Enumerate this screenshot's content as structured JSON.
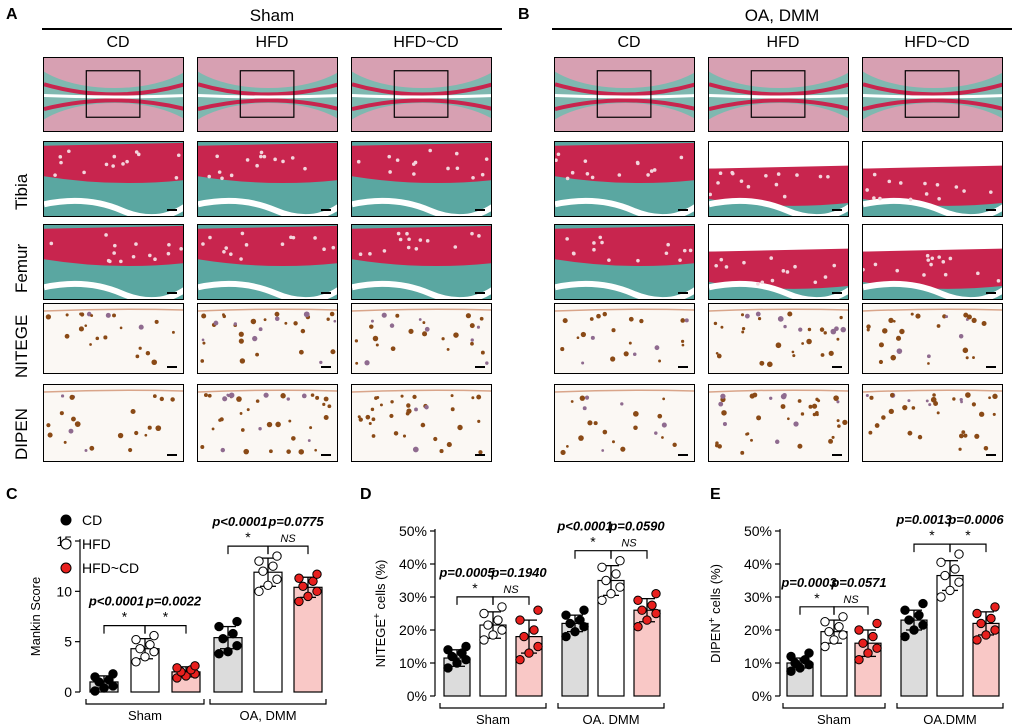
{
  "panels": {
    "A": {
      "letter": "A",
      "group": "Sham"
    },
    "B": {
      "letter": "B",
      "group": "OA, DMM"
    },
    "columns": [
      "CD",
      "HFD",
      "HFD~CD"
    ],
    "rows": [
      "Tibia",
      "Femur",
      "NITEGE",
      "DIPEN"
    ]
  },
  "colors": {
    "cd": "#000000",
    "hfd": "#ffffff",
    "hfdcd": "#e8201e",
    "barCD": "#dcdcdc",
    "barHFD": "#ffffff",
    "barHFDCD": "#f9c8c6",
    "safranin": "#c8254e",
    "fastgreen": "#5aa7a1",
    "dab": "#8a4a16"
  },
  "chart_data": [
    {
      "panel": "C",
      "type": "bar",
      "ylabel": "Mankin Score",
      "ylim": [
        0,
        15
      ],
      "yticks": [
        0,
        5,
        10,
        15
      ],
      "groups": [
        "Sham",
        "OA, DMM"
      ],
      "series": [
        {
          "name": "CD",
          "values": [
            1.0,
            5.4
          ]
        },
        {
          "name": "HFD",
          "values": [
            4.3,
            11.9
          ]
        },
        {
          "name": "HFD~CD",
          "values": [
            2.0,
            10.4
          ]
        }
      ],
      "errors": [
        [
          0.6,
          1.1
        ],
        [
          1.0,
          1.4
        ],
        [
          0.5,
          1.0
        ]
      ],
      "points": [
        [
          [
            0.1,
            0.4,
            0.6,
            1.0,
            1.2,
            1.5,
            1.8
          ],
          [
            3.8,
            4.0,
            4.6,
            5.3,
            5.8,
            6.5,
            7.0
          ]
        ],
        [
          [
            3.0,
            3.5,
            4.0,
            4.3,
            4.7,
            5.2,
            5.6
          ],
          [
            10.0,
            10.6,
            11.2,
            12.0,
            12.5,
            13.0,
            13.5
          ]
        ],
        [
          [
            1.4,
            1.6,
            1.8,
            2.0,
            2.2,
            2.4,
            2.6
          ],
          [
            9.0,
            9.5,
            10.0,
            10.5,
            11.0,
            11.3,
            11.7
          ]
        ]
      ],
      "legend": [
        "CD",
        "HFD",
        "HFD~CD"
      ],
      "sig": [
        {
          "group": 0,
          "from": 0,
          "to": 1,
          "star": "*",
          "p": "p<0.0001"
        },
        {
          "group": 0,
          "from": 1,
          "to": 2,
          "star": "*",
          "p": "p=0.0022"
        },
        {
          "group": 1,
          "from": 0,
          "to": 1,
          "star": "*",
          "p": "p<0.0001"
        },
        {
          "group": 1,
          "from": 1,
          "to": 2,
          "star": "NS",
          "p": "p=0.0775"
        }
      ]
    },
    {
      "panel": "D",
      "type": "bar",
      "ylabel": "NITEGE",
      "ylabel_sup": "+",
      "ylabel_suffix": " cells (%)",
      "ylim": [
        0,
        50
      ],
      "yticks": [
        0,
        10,
        20,
        30,
        40,
        50
      ],
      "yticklabels": [
        "0%",
        "10%",
        "20%",
        "30%",
        "40%",
        "50%"
      ],
      "groups": [
        "Sham",
        "OA, DMM"
      ],
      "series": [
        {
          "name": "CD",
          "values": [
            11.5,
            22.0
          ]
        },
        {
          "name": "HFD",
          "values": [
            21.5,
            35.0
          ]
        },
        {
          "name": "HFD~CD",
          "values": [
            18.0,
            26.0
          ]
        }
      ],
      "errors": [
        [
          2.5,
          2.5
        ],
        [
          4.0,
          4.5
        ],
        [
          5.0,
          3.5
        ]
      ],
      "points": [
        [
          [
            8.5,
            10,
            11,
            12,
            13,
            14,
            15
          ],
          [
            18,
            19.5,
            21,
            22,
            23,
            24.5,
            26
          ]
        ],
        [
          [
            17,
            18.5,
            20,
            21.5,
            23,
            25,
            27
          ],
          [
            29,
            31,
            33,
            35,
            37,
            39,
            41
          ]
        ],
        [
          [
            11,
            13,
            15,
            18,
            20,
            23,
            26
          ],
          [
            21,
            23,
            25,
            26,
            27.5,
            29,
            31
          ]
        ]
      ],
      "sig": [
        {
          "group": 0,
          "from": 0,
          "to": 1,
          "star": "*",
          "p": "p=0.0005"
        },
        {
          "group": 0,
          "from": 1,
          "to": 2,
          "star": "NS",
          "p": "p=0.1940"
        },
        {
          "group": 1,
          "from": 0,
          "to": 1,
          "star": "*",
          "p": "p<0.0001"
        },
        {
          "group": 1,
          "from": 1,
          "to": 2,
          "star": "NS",
          "p": "p=0.0590"
        }
      ]
    },
    {
      "panel": "E",
      "type": "bar",
      "ylabel": "DIPEN",
      "ylabel_sup": "+",
      "ylabel_suffix": " cells (%)",
      "ylim": [
        0,
        50
      ],
      "yticks": [
        0,
        10,
        20,
        30,
        40,
        50
      ],
      "yticklabels": [
        "0%",
        "10%",
        "20%",
        "30%",
        "40%",
        "50%"
      ],
      "groups": [
        "Sham",
        "OA,DMM"
      ],
      "series": [
        {
          "name": "CD",
          "values": [
            10.0,
            23.0
          ]
        },
        {
          "name": "HFD",
          "values": [
            19.5,
            36.5
          ]
        },
        {
          "name": "HFD~CD",
          "values": [
            16.0,
            22.0
          ]
        }
      ],
      "errors": [
        [
          1.5,
          3.0
        ],
        [
          3.5,
          4.5
        ],
        [
          4.0,
          3.5
        ]
      ],
      "points": [
        [
          [
            7.5,
            8.5,
            9.5,
            10,
            11,
            12,
            13
          ],
          [
            18,
            20,
            21.5,
            23,
            24.5,
            26,
            28
          ]
        ],
        [
          [
            15,
            17,
            18.5,
            19.5,
            21,
            22.5,
            24
          ],
          [
            30,
            32,
            34.5,
            36.5,
            38.5,
            40.5,
            43
          ]
        ],
        [
          [
            11,
            13,
            14.5,
            16,
            18,
            20,
            22
          ],
          [
            17,
            18.5,
            20,
            22,
            23.5,
            25,
            27
          ]
        ]
      ],
      "sig": [
        {
          "group": 0,
          "from": 0,
          "to": 1,
          "star": "*",
          "p": "p=0.0003"
        },
        {
          "group": 0,
          "from": 1,
          "to": 2,
          "star": "NS",
          "p": "p=0.0571"
        },
        {
          "group": 1,
          "from": 0,
          "to": 1,
          "star": "*",
          "p": "p=0.0013"
        },
        {
          "group": 1,
          "from": 1,
          "to": 2,
          "star": "*",
          "p": "p=0.0006"
        }
      ]
    }
  ]
}
